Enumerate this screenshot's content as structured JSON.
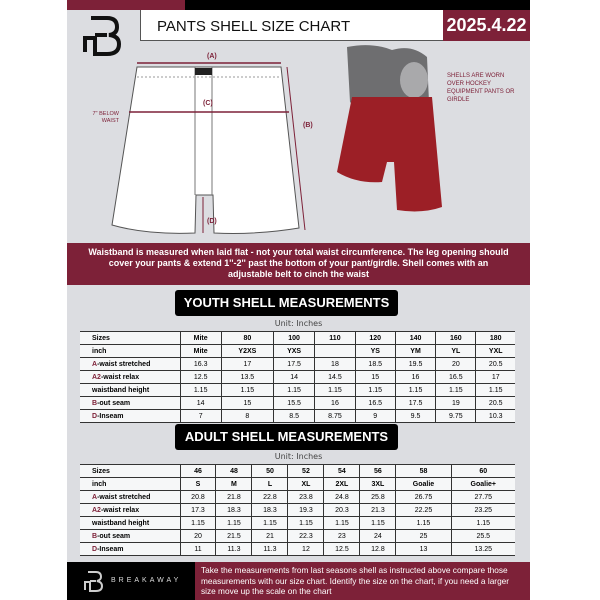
{
  "header": {
    "title": "PANTS SHELL SIZE CHART",
    "date": "2025.4.22",
    "brand_color": "#7d2138"
  },
  "diagram": {
    "label_a": "(A)",
    "label_b": "(B)",
    "label_c": "(C)",
    "label_d": "(D)",
    "c_note": "7'' BELOW WAIST",
    "side_note": "SHELLS ARE WORN OVER HOCKEY EQUIPMENT PANTS OR GIRDLE"
  },
  "banner": "Waistband is measured when laid flat - not your total waist circumference. The leg opening should cover your pants & extend 1''-2'' past the bottom of your pant/girdle. Shell comes with an adjustable belt to cinch the waist",
  "youth": {
    "title": "YOUTH SHELL MEASUREMENTS",
    "unit": "Unit: Inches",
    "rows": [
      {
        "prefix": "",
        "label": "Sizes",
        "values": [
          "Mite",
          "80",
          "100",
          "110",
          "120",
          "140",
          "160",
          "180"
        ]
      },
      {
        "prefix": "",
        "label": "inch",
        "values": [
          "Mite",
          "Y2XS",
          "YXS",
          "",
          "YS",
          "YM",
          "YL",
          "YXL"
        ]
      },
      {
        "prefix": "A",
        "label": "-waist stretched",
        "values": [
          "16.3",
          "17",
          "17.5",
          "18",
          "18.5",
          "19.5",
          "20",
          "20.5"
        ]
      },
      {
        "prefix": "A2",
        "label": "-waist relax",
        "values": [
          "12.5",
          "13.5",
          "14",
          "14.5",
          "15",
          "16",
          "16.5",
          "17"
        ]
      },
      {
        "prefix": "",
        "label": "waistband height",
        "values": [
          "1.15",
          "1.15",
          "1.15",
          "1.15",
          "1.15",
          "1.15",
          "1.15",
          "1.15"
        ]
      },
      {
        "prefix": "B",
        "label": "-out seam",
        "values": [
          "14",
          "15",
          "15.5",
          "16",
          "16.5",
          "17.5",
          "19",
          "20.5"
        ]
      },
      {
        "prefix": "D",
        "label": "-Inseam",
        "values": [
          "7",
          "8",
          "8.5",
          "8.75",
          "9",
          "9.5",
          "9.75",
          "10.3"
        ]
      }
    ]
  },
  "adult": {
    "title": "ADULT SHELL MEASUREMENTS",
    "unit": "Unit: Inches",
    "rows": [
      {
        "prefix": "",
        "label": "Sizes",
        "values": [
          "46",
          "48",
          "50",
          "52",
          "54",
          "56",
          "58",
          "60"
        ]
      },
      {
        "prefix": "",
        "label": "inch",
        "values": [
          "S",
          "M",
          "L",
          "XL",
          "2XL",
          "3XL",
          "Goalie",
          "Goalie+"
        ]
      },
      {
        "prefix": "A",
        "label": "-waist stretched",
        "values": [
          "20.8",
          "21.8",
          "22.8",
          "23.8",
          "24.8",
          "25.8",
          "26.75",
          "27.75"
        ]
      },
      {
        "prefix": "A2",
        "label": "-waist relax",
        "values": [
          "17.3",
          "18.3",
          "18.3",
          "19.3",
          "20.3",
          "21.3",
          "22.25",
          "23.25"
        ]
      },
      {
        "prefix": "",
        "label": "waistband height",
        "values": [
          "1.15",
          "1.15",
          "1.15",
          "1.15",
          "1.15",
          "1.15",
          "1.15",
          "1.15"
        ]
      },
      {
        "prefix": "B",
        "label": "-out seam",
        "values": [
          "20",
          "21.5",
          "21",
          "22.3",
          "23",
          "24",
          "25",
          "25.5"
        ]
      },
      {
        "prefix": "D",
        "label": "-Inseam",
        "values": [
          "11",
          "11.3",
          "11.3",
          "12",
          "12.5",
          "12.8",
          "13",
          "13.25"
        ]
      }
    ]
  },
  "footer": {
    "brand": "BREAKAWAY",
    "text": "Take the measurements from last seasons shell as instructed above compare those measurements  with our size chart. Identify the size on the chart, if you need a larger size move up the scale on the chart"
  }
}
